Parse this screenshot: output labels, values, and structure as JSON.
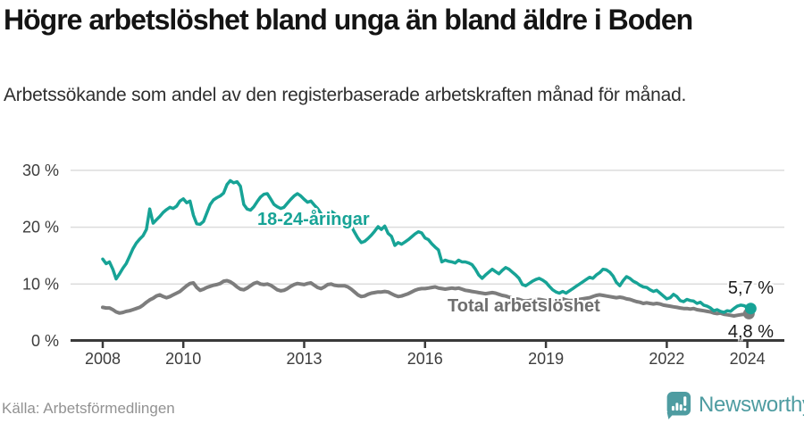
{
  "header": {
    "title": "Högre arbetslöshet bland unga än bland äldre i Boden",
    "subtitle": "Arbetssökande som andel av den registerbaserade arbetskraften månad för månad."
  },
  "footer": {
    "source": "Källa: Arbetsförmedlingen",
    "brand": "Newsworthy"
  },
  "colors": {
    "young_line": "#17a396",
    "total_line": "#7d7d7d",
    "total_label": "#6e6e6e",
    "axis": "#3a3a3a",
    "gridline": "#dcdcdc",
    "tick_text": "#3d3d3d",
    "end_label_text": "#1a1a1a",
    "brand_teal": "#4e9ca1"
  },
  "chart_data": {
    "type": "line",
    "title": "Högre arbetslöshet bland unga än bland äldre i Boden",
    "unit": "%",
    "x_start_month": "2008-01",
    "x_end_month": "2024-02",
    "x_ticks": [
      "2008",
      "2010",
      "2013",
      "2016",
      "2019",
      "2022",
      "2024"
    ],
    "y_ticks": [
      {
        "label": "0 %",
        "value": 0
      },
      {
        "label": "10 %",
        "value": 10
      },
      {
        "label": "20 %",
        "value": 20
      },
      {
        "label": "30 %",
        "value": 30
      }
    ],
    "ylim": [
      0,
      32
    ],
    "grid": true,
    "legend_position": "inline-labels",
    "series": [
      {
        "name": "18-24-åringar",
        "end_label": "5,7 %",
        "end_value": 5.7,
        "values": [
          14.4,
          13.6,
          13.9,
          12.6,
          10.9,
          11.8,
          12.8,
          13.6,
          14.9,
          16.2,
          17.2,
          17.9,
          18.5,
          19.6,
          23.2,
          20.7,
          21.3,
          21.9,
          22.6,
          23.1,
          23.5,
          23.3,
          23.7,
          24.6,
          25.0,
          24.3,
          24.6,
          22.1,
          20.6,
          20.5,
          21.0,
          22.5,
          24.0,
          24.8,
          25.2,
          25.5,
          26.0,
          27.5,
          28.2,
          27.8,
          28.0,
          27.2,
          24.0,
          23.2,
          23.0,
          23.6,
          24.5,
          25.3,
          25.8,
          25.9,
          25.0,
          24.0,
          23.6,
          23.3,
          23.5,
          24.2,
          24.9,
          25.5,
          25.9,
          25.5,
          24.9,
          24.4,
          24.6,
          23.9,
          23.3,
          22.4,
          21.8,
          22.3,
          22.8,
          22.4,
          21.9,
          21.4,
          21.0,
          20.5,
          20.2,
          19.1,
          18.1,
          17.3,
          17.5,
          18.0,
          18.6,
          19.3,
          20.1,
          19.6,
          20.2,
          18.9,
          18.4,
          16.8,
          17.3,
          17.0,
          17.4,
          17.8,
          18.3,
          18.8,
          19.2,
          19.0,
          18.1,
          17.8,
          17.1,
          16.5,
          16.0,
          13.9,
          14.2,
          14.0,
          13.9,
          13.7,
          14.2,
          13.9,
          13.9,
          13.7,
          13.4,
          12.6,
          11.6,
          11.0,
          11.6,
          12.1,
          12.6,
          12.2,
          11.8,
          12.4,
          12.9,
          12.6,
          12.1,
          11.6,
          11.0,
          9.9,
          9.7,
          10.1,
          10.5,
          10.8,
          11.0,
          10.7,
          10.3,
          9.6,
          9.0,
          8.6,
          8.4,
          8.7,
          8.4,
          8.8,
          9.2,
          9.6,
          10.0,
          10.4,
          10.8,
          11.2,
          11.0,
          11.6,
          12.0,
          12.6,
          12.5,
          12.1,
          11.4,
          10.3,
          9.7,
          10.6,
          11.3,
          11.0,
          10.5,
          10.2,
          9.8,
          9.5,
          9.4,
          9.0,
          8.7,
          8.9,
          8.4,
          7.9,
          7.4,
          7.6,
          8.2,
          7.8,
          7.1,
          6.9,
          7.3,
          7.1,
          7.0,
          6.6,
          6.8,
          6.3,
          6.1,
          5.8,
          5.3,
          5.5,
          5.2,
          5.0,
          5.3,
          5.2,
          5.7,
          6.1,
          6.3,
          6.2,
          5.9,
          5.7
        ]
      },
      {
        "name": "Total arbetslöshet",
        "end_label": "4,8 %",
        "end_value": 4.8,
        "values": [
          5.9,
          5.8,
          5.8,
          5.5,
          5.1,
          4.9,
          5.0,
          5.2,
          5.3,
          5.5,
          5.7,
          5.9,
          6.3,
          6.8,
          7.2,
          7.5,
          7.9,
          8.1,
          7.8,
          7.6,
          7.8,
          8.1,
          8.4,
          8.7,
          9.2,
          9.7,
          10.1,
          10.2,
          9.4,
          8.9,
          9.1,
          9.4,
          9.6,
          9.8,
          9.9,
          10.1,
          10.5,
          10.6,
          10.4,
          10.0,
          9.5,
          9.1,
          9.0,
          9.3,
          9.7,
          10.1,
          10.3,
          10.0,
          9.9,
          10.0,
          9.8,
          9.4,
          9.0,
          8.8,
          8.9,
          9.2,
          9.6,
          9.9,
          10.1,
          10.0,
          9.9,
          10.1,
          10.2,
          9.8,
          9.4,
          9.2,
          9.5,
          9.9,
          10.0,
          9.8,
          9.7,
          9.7,
          9.7,
          9.5,
          9.1,
          8.6,
          8.1,
          7.8,
          7.9,
          8.2,
          8.4,
          8.5,
          8.6,
          8.6,
          8.7,
          8.6,
          8.3,
          8.0,
          7.8,
          7.9,
          8.1,
          8.3,
          8.6,
          8.9,
          9.1,
          9.2,
          9.2,
          9.3,
          9.4,
          9.5,
          9.3,
          9.2,
          9.1,
          9.2,
          9.3,
          9.2,
          9.3,
          9.1,
          8.9,
          8.8,
          8.7,
          8.6,
          8.5,
          8.4,
          8.3,
          8.4,
          8.5,
          8.4,
          8.2,
          8.0,
          7.9,
          7.7,
          7.5,
          7.4,
          7.3,
          7.1,
          7.0,
          7.1,
          7.2,
          7.3,
          7.3,
          7.2,
          7.1,
          7.0,
          6.9,
          6.9,
          7.0,
          7.4,
          7.2,
          7.1,
          7.1,
          7.2,
          7.3,
          7.4,
          7.5,
          7.6,
          7.8,
          8.0,
          8.1,
          8.0,
          7.9,
          7.8,
          7.7,
          7.6,
          7.7,
          7.6,
          7.4,
          7.3,
          7.1,
          6.9,
          6.8,
          6.6,
          6.7,
          6.6,
          6.5,
          6.6,
          6.5,
          6.3,
          6.2,
          6.1,
          6.0,
          5.9,
          5.8,
          5.7,
          5.7,
          5.6,
          5.7,
          5.5,
          5.4,
          5.3,
          5.2,
          5.1,
          4.9,
          4.8,
          4.9,
          4.7,
          4.6,
          4.5,
          4.4,
          4.5,
          4.6,
          4.7,
          4.8,
          4.8
        ]
      }
    ]
  }
}
